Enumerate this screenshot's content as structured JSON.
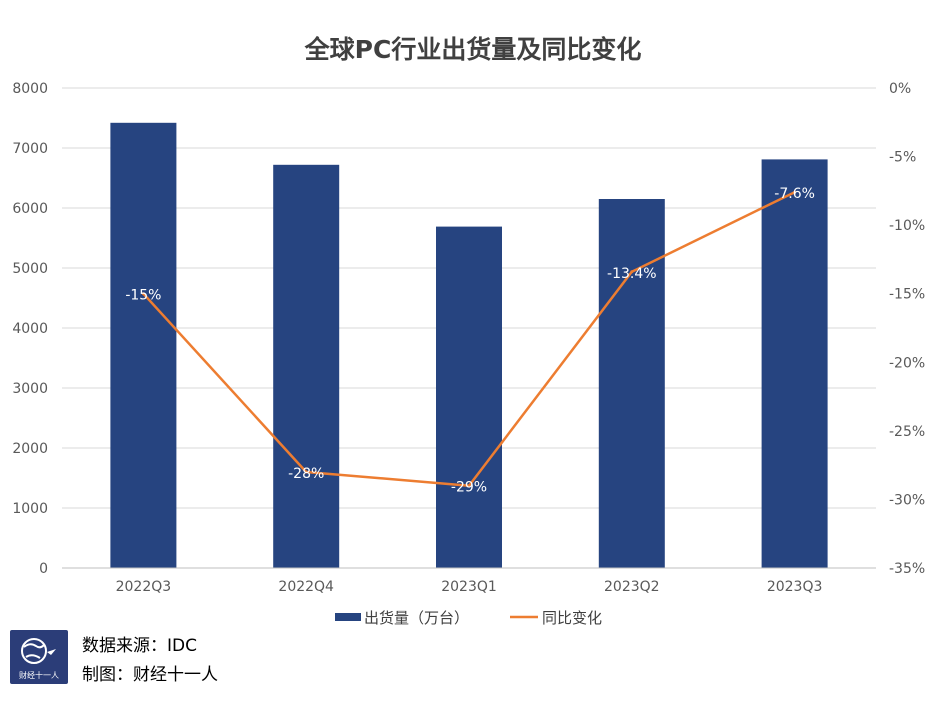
{
  "chart_data": {
    "type": "bar+line",
    "title": "全球PC行业出货量及同比变化",
    "categories": [
      "2022Q3",
      "2022Q4",
      "2023Q1",
      "2023Q2",
      "2023Q3"
    ],
    "series": [
      {
        "name": "出货量（万台）",
        "type": "bar",
        "axis": "left",
        "color": "#264480",
        "values": [
          7420,
          6720,
          5690,
          6150,
          6810
        ]
      },
      {
        "name": "同比变化",
        "type": "line",
        "axis": "right",
        "color": "#ed7d31",
        "values": [
          -15,
          -28,
          -29,
          -13.4,
          -7.6
        ],
        "labels": [
          "-15%",
          "-28%",
          "-29%",
          "-13.4%",
          "-7.6%"
        ]
      }
    ],
    "left_axis": {
      "min": 0,
      "max": 8000,
      "ticks": [
        "0",
        "1000",
        "2000",
        "3000",
        "4000",
        "5000",
        "6000",
        "7000",
        "8000"
      ]
    },
    "right_axis": {
      "min": -35,
      "max": 0,
      "ticks": [
        "-35%",
        "-30%",
        "-25%",
        "-20%",
        "-15%",
        "-10%",
        "-5%",
        "0%"
      ]
    },
    "grid": true,
    "legend": "bottom"
  },
  "footer": {
    "source": "数据来源：IDC",
    "credit": "制图：财经十一人",
    "logo_text": "财经十一人",
    "logo_icon": "globe-icon"
  }
}
